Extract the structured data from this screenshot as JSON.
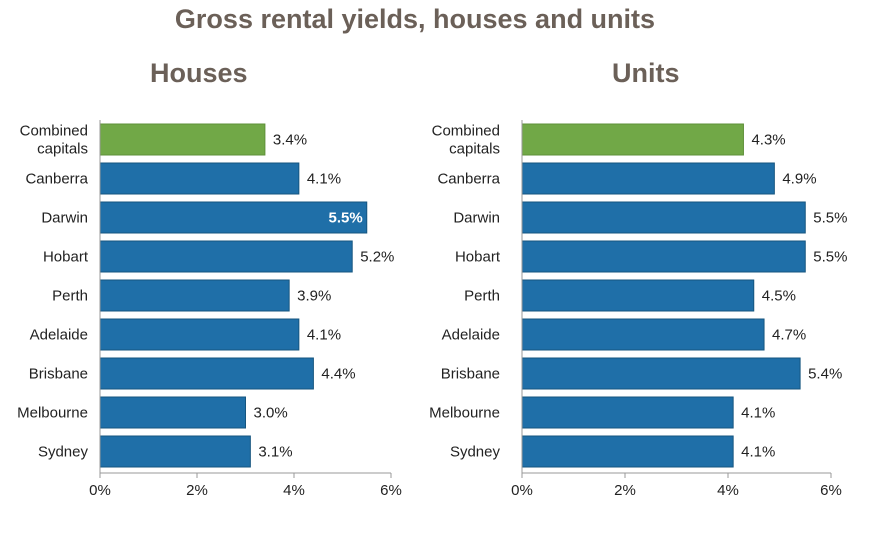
{
  "title": "Gross rental yields, houses and units",
  "colors": {
    "title": "#6b6058",
    "highlight_bar": "#71a847",
    "bar": "#1f6fa8",
    "bar_edge": "#15557f",
    "axis": "#999999",
    "text": "#222222"
  },
  "chart_data": [
    {
      "type": "bar",
      "orientation": "horizontal",
      "title": "Houses",
      "categories": [
        "Combined capitals",
        "Canberra",
        "Darwin",
        "Hobart",
        "Perth",
        "Adelaide",
        "Brisbane",
        "Melbourne",
        "Sydney"
      ],
      "values": [
        3.4,
        4.1,
        5.5,
        5.2,
        3.9,
        4.1,
        4.4,
        3.0,
        3.1
      ],
      "data_labels": [
        "3.4%",
        "4.1%",
        "5.5%",
        "5.2%",
        "3.9%",
        "4.1%",
        "4.4%",
        "3.0%",
        "3.1%"
      ],
      "highlight_category": "Combined capitals",
      "xlim": [
        0,
        6
      ],
      "xticks": [
        "0%",
        "2%",
        "4%",
        "6%"
      ],
      "grid": false
    },
    {
      "type": "bar",
      "orientation": "horizontal",
      "title": "Units",
      "categories": [
        "Combined capitals",
        "Canberra",
        "Darwin",
        "Hobart",
        "Perth",
        "Adelaide",
        "Brisbane",
        "Melbourne",
        "Sydney"
      ],
      "values": [
        4.3,
        4.9,
        5.5,
        5.5,
        4.5,
        4.7,
        5.4,
        4.1,
        4.1
      ],
      "data_labels": [
        "4.3%",
        "4.9%",
        "5.5%",
        "5.5%",
        "4.5%",
        "4.7%",
        "5.4%",
        "4.1%",
        "4.1%"
      ],
      "highlight_category": "Combined capitals",
      "xlim": [
        0,
        6
      ],
      "xticks": [
        "0%",
        "2%",
        "4%",
        "6%"
      ],
      "grid": false
    }
  ]
}
